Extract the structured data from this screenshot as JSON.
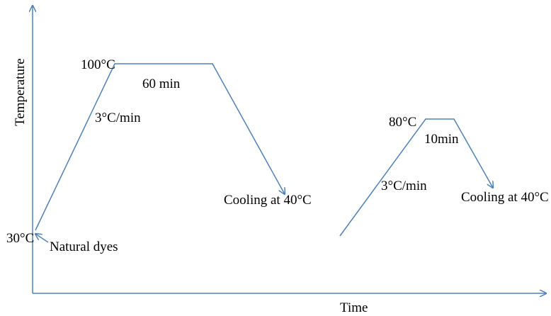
{
  "axes": {
    "x_label": "Time",
    "y_label": "Temperature"
  },
  "process_1": {
    "start_temp": "30°C",
    "start_note": "Natural dyes",
    "ramp_rate": "3°C/min",
    "hold_temp": "100°C",
    "hold_time": "60 min",
    "cooling": "Cooling at 40°C"
  },
  "process_2": {
    "ramp_rate": "3°C/min",
    "hold_temp": "80°C",
    "hold_time": "10min",
    "cooling": "Cooling at 40°C"
  },
  "colors": {
    "line": "#4f81bd",
    "text": "#000000"
  }
}
